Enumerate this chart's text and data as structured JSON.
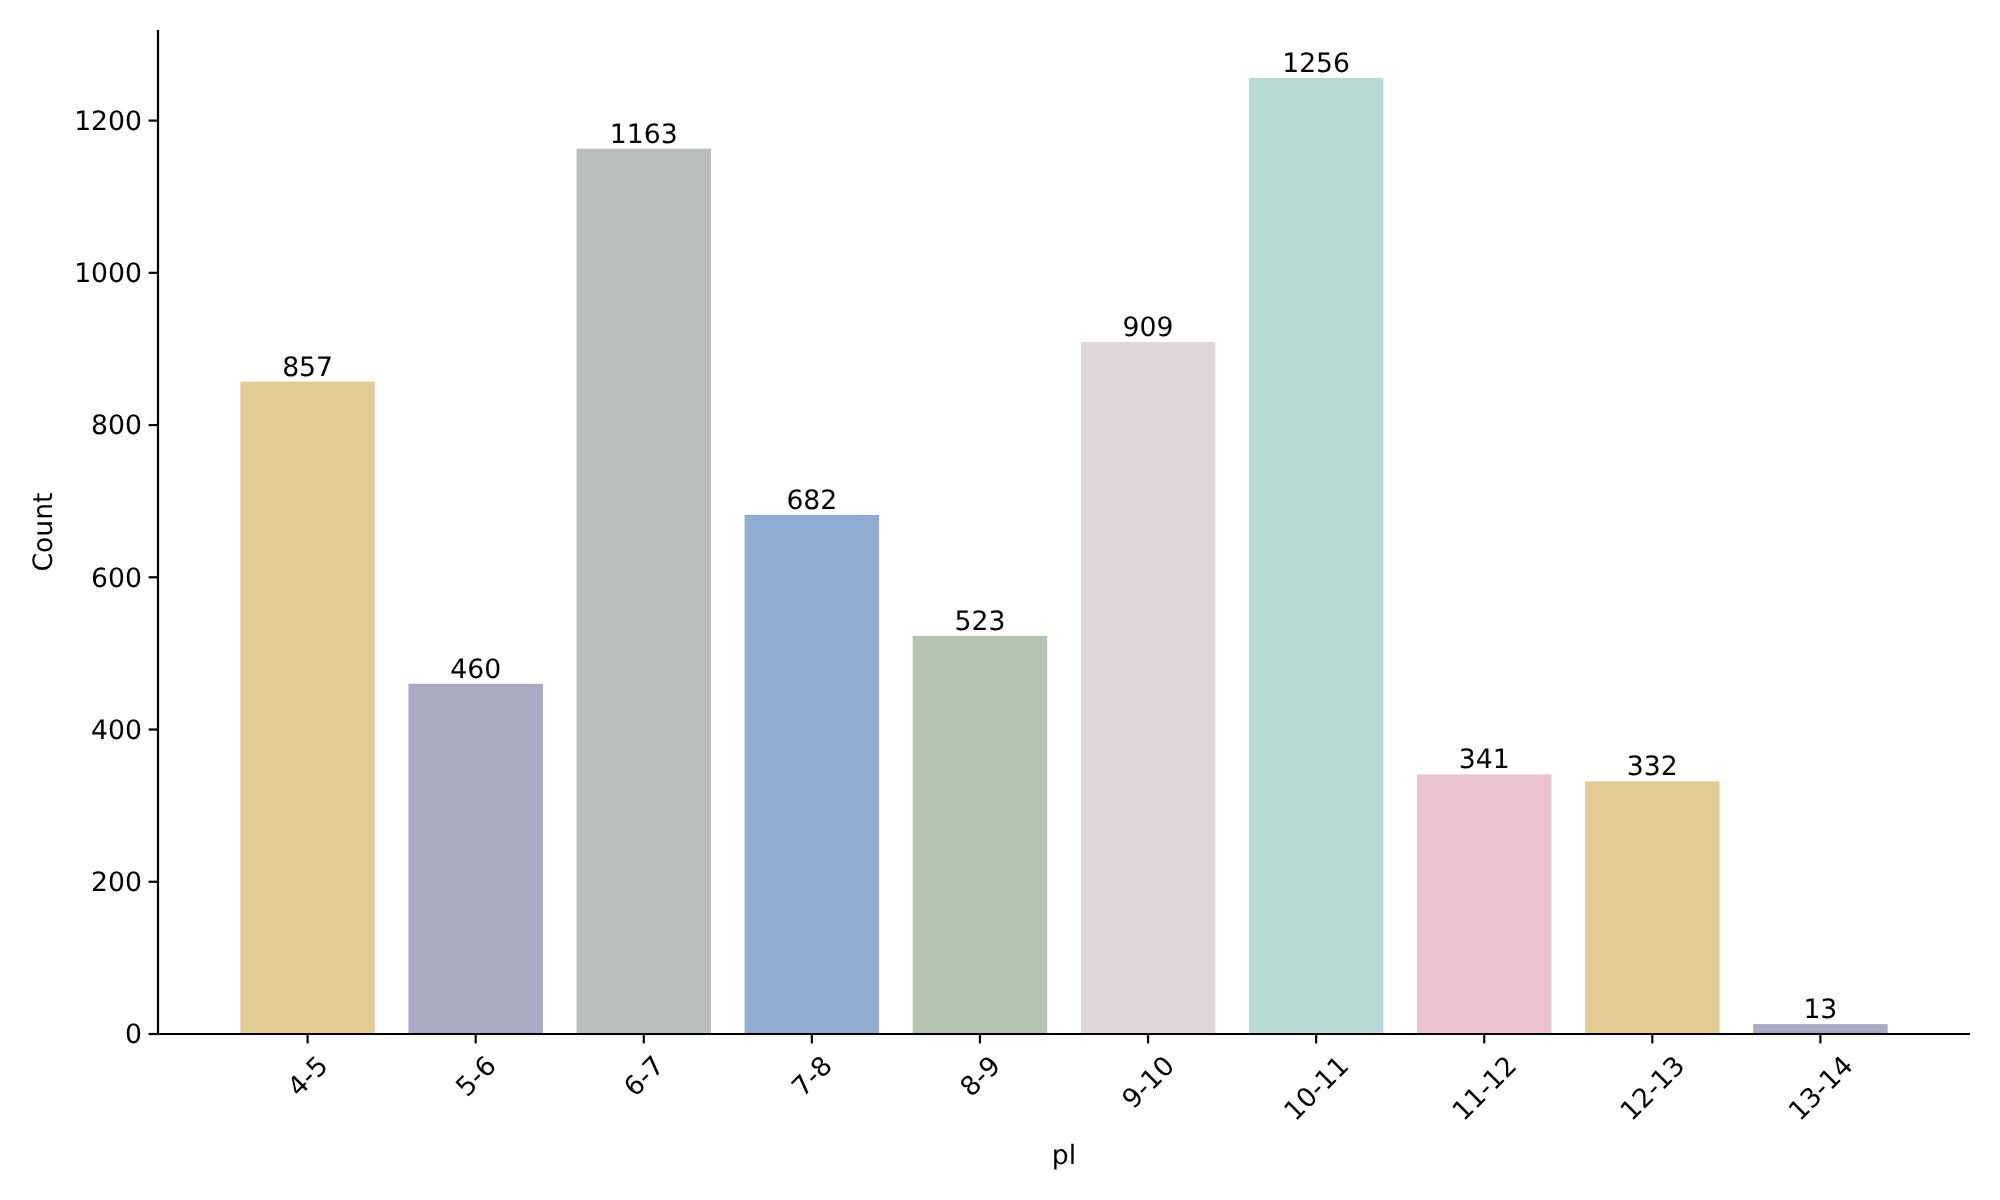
{
  "chart_data": {
    "type": "bar",
    "xlabel": "pl",
    "ylabel": "Count",
    "categories": [
      "4-5",
      "5-6",
      "6-7",
      "7-8",
      "8-9",
      "9-10",
      "10-11",
      "11-12",
      "12-13",
      "13-14"
    ],
    "values": [
      857,
      460,
      1163,
      682,
      523,
      909,
      1256,
      341,
      332,
      13
    ],
    "colors": [
      "#e3cb95",
      "#aaaac3",
      "#b9bdbd",
      "#92abd0",
      "#b4c4b0",
      "#dfd6d7",
      "#b9dad4",
      "#ebc3ce",
      "#e3cb95",
      "#aaaac3"
    ],
    "ylim": [
      0,
      1319
    ],
    "yticks": [
      0,
      200,
      400,
      600,
      800,
      1000,
      1200
    ],
    "data_labels": true
  }
}
